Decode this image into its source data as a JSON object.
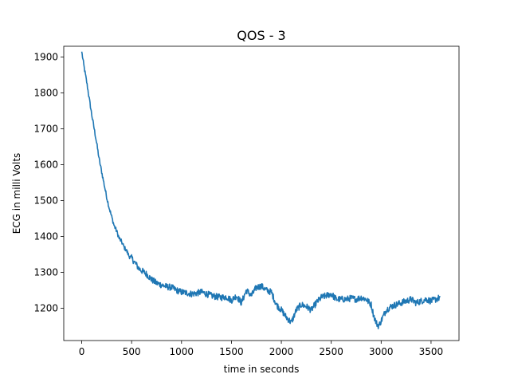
{
  "chart_data": {
    "type": "line",
    "title": "QOS - 3",
    "xlabel": "time in seconds",
    "ylabel": "ECG in milli Volts",
    "xlim": [
      -180,
      3780
    ],
    "ylim": [
      1110,
      1930
    ],
    "xticks": [
      0,
      500,
      1000,
      1500,
      2000,
      2500,
      3000,
      3500
    ],
    "yticks": [
      1200,
      1300,
      1400,
      1500,
      1600,
      1700,
      1800,
      1900
    ],
    "grid": false,
    "series": [
      {
        "color": "#1f77b4",
        "x": [
          0,
          25,
          50,
          75,
          100,
          125,
          150,
          175,
          200,
          225,
          250,
          275,
          300,
          325,
          350,
          375,
          400,
          425,
          450,
          475,
          500,
          525,
          550,
          575,
          600,
          650,
          700,
          750,
          800,
          850,
          900,
          950,
          1000,
          1050,
          1100,
          1150,
          1200,
          1250,
          1300,
          1350,
          1400,
          1450,
          1500,
          1550,
          1600,
          1650,
          1700,
          1750,
          1800,
          1850,
          1900,
          1950,
          2000,
          2050,
          2100,
          2150,
          2200,
          2250,
          2300,
          2350,
          2400,
          2450,
          2500,
          2550,
          2600,
          2650,
          2700,
          2750,
          2800,
          2850,
          2900,
          2925,
          2950,
          2975,
          3000,
          3050,
          3100,
          3150,
          3200,
          3250,
          3300,
          3350,
          3400,
          3450,
          3500,
          3550,
          3590
        ],
        "y": [
          1915,
          1870,
          1830,
          1785,
          1740,
          1700,
          1660,
          1615,
          1580,
          1545,
          1510,
          1480,
          1455,
          1430,
          1415,
          1395,
          1385,
          1370,
          1360,
          1345,
          1340,
          1330,
          1320,
          1310,
          1305,
          1295,
          1280,
          1270,
          1265,
          1260,
          1258,
          1250,
          1245,
          1243,
          1240,
          1242,
          1245,
          1240,
          1235,
          1232,
          1230,
          1232,
          1222,
          1235,
          1215,
          1250,
          1235,
          1258,
          1262,
          1250,
          1245,
          1210,
          1195,
          1175,
          1160,
          1195,
          1210,
          1205,
          1195,
          1215,
          1230,
          1235,
          1240,
          1225,
          1225,
          1225,
          1228,
          1225,
          1230,
          1225,
          1210,
          1180,
          1160,
          1150,
          1165,
          1195,
          1205,
          1210,
          1215,
          1220,
          1225,
          1215,
          1220,
          1225,
          1220,
          1225,
          1230
        ]
      }
    ]
  }
}
